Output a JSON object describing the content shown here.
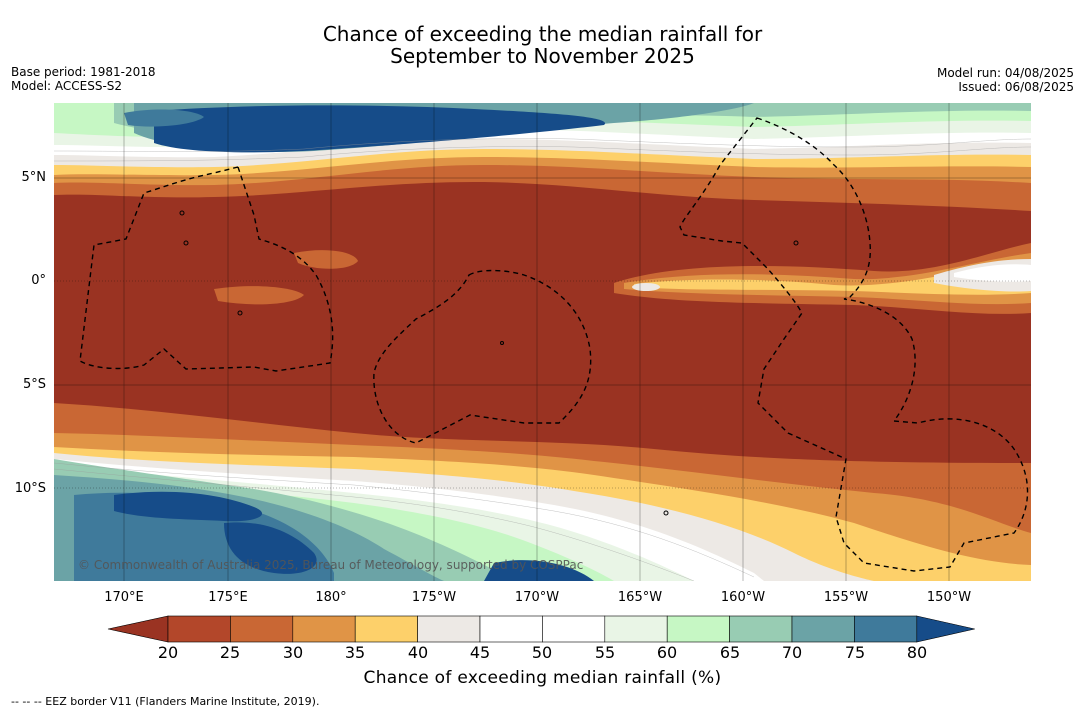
{
  "title_line1": "Chance of exceeding the median rainfall for",
  "title_line2": "September to November 2025",
  "meta_left": {
    "base_period": "Base period: 1981-2018",
    "model": "Model: ACCESS-S2"
  },
  "meta_right": {
    "model_run": "Model run: 04/08/2025",
    "issued": "Issued: 06/08/2025"
  },
  "map": {
    "lat_ticks": [
      "5°N",
      "0°",
      "5°S",
      "10°S"
    ],
    "lon_ticks": [
      "170°E",
      "175°E",
      "180°",
      "175°W",
      "170°W",
      "165°W",
      "160°W",
      "155°W",
      "150°W"
    ],
    "copyright": "© Commonwealth of Australia 2025, Bureau of Meteorology, supported by COSPPac"
  },
  "colorbar": {
    "values": [
      "20",
      "25",
      "30",
      "35",
      "40",
      "45",
      "50",
      "55",
      "60",
      "65",
      "70",
      "75",
      "80"
    ],
    "colors": [
      "#9a3322",
      "#b3472a",
      "#c96734",
      "#e09446",
      "#fdd06a",
      "#ede9e5",
      "#ffffff",
      "#ffffff",
      "#e9f5e6",
      "#c6f7c4",
      "#98ccb3",
      "#6ba3a6",
      "#3f7a9b",
      "#164c89"
    ],
    "label": "Chance of exceeding median rainfall (%)"
  },
  "footnote": "-- -- -- EEZ border V11 (Flanders Marine Institute, 2019)."
}
